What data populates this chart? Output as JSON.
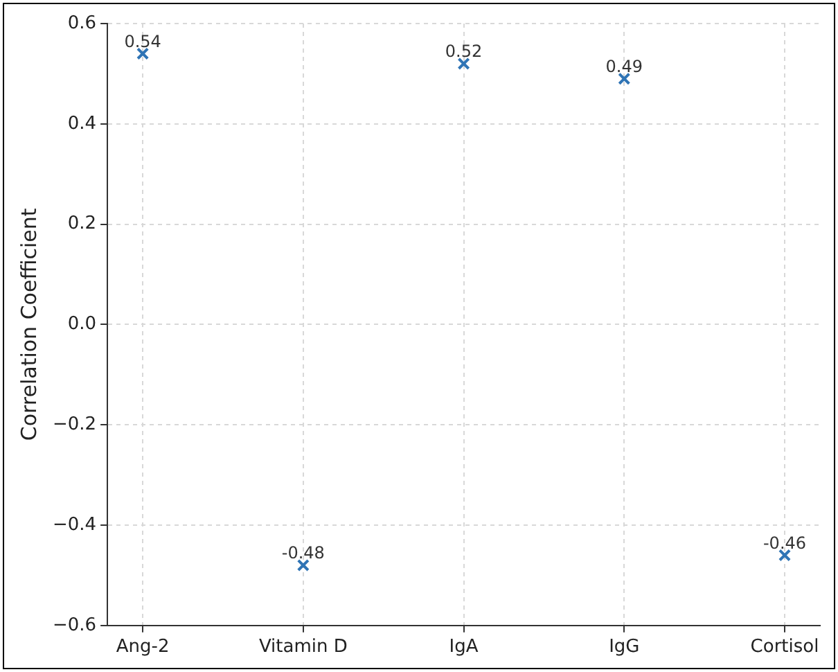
{
  "chart_data": {
    "type": "scatter",
    "ylabel": "Correlation Coefficient",
    "categories": [
      "Ang-2",
      "Vitamin D",
      "IgA",
      "IgG",
      "Cortisol"
    ],
    "values": [
      0.54,
      -0.48,
      0.52,
      0.49,
      -0.46
    ],
    "color": "#2f74b5",
    "ylim": [
      -0.6,
      0.6
    ],
    "yticks": [
      {
        "value": -0.6,
        "label": "−0.6"
      },
      {
        "value": -0.4,
        "label": "−0.4"
      },
      {
        "value": -0.2,
        "label": "−0.2"
      },
      {
        "value": 0,
        "label": "0.0"
      },
      {
        "value": 0.2,
        "label": "0.2"
      },
      {
        "value": 0.4,
        "label": "0.4"
      },
      {
        "value": 0.6,
        "label": "0.6"
      }
    ],
    "grid": true,
    "marker": "cross",
    "data_labels": true
  }
}
